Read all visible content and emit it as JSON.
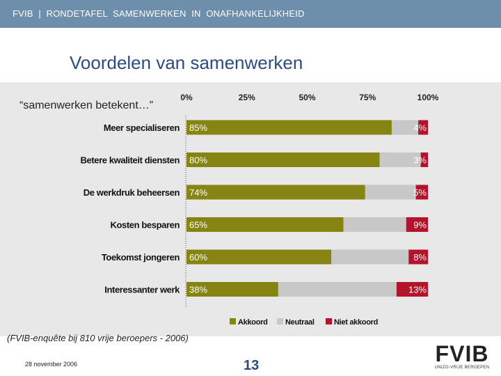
{
  "header": {
    "text": "FVIB  |  RONDETAFEL  SAMENWERKEN  IN  ONAFHANKELIJKHEID"
  },
  "title": "Voordelen van samenwerken",
  "colors": {
    "header": "#6d8fac",
    "title": "#2c4a86",
    "akkoord": "#868513",
    "neutraal": "#c8c8c8",
    "niet_akkoord": "#b3132b",
    "logo_accent": "#c8102e"
  },
  "chart_data": {
    "type": "bar",
    "stacked": true,
    "orientation": "horizontal",
    "subtitle": "“samenwerken betekent…”",
    "xaxis_ticks": [
      "0%",
      "25%",
      "50%",
      "75%",
      "100%"
    ],
    "xlim": [
      0,
      100
    ],
    "categories": [
      "Meer specialiseren",
      "Betere kwaliteit  diensten",
      "De werkdruk  beheersen",
      "Kosten besparen",
      "Toekomst jongeren",
      "Interessanter werk"
    ],
    "series": [
      {
        "name": "Akkoord",
        "values": [
          85,
          80,
          74,
          65,
          60,
          38
        ],
        "labels": [
          "85%",
          "80%",
          "74%",
          "65%",
          "60%",
          "38%"
        ]
      },
      {
        "name": "Neutraal",
        "values": [
          11,
          17,
          21,
          26,
          32,
          49
        ]
      },
      {
        "name": "Niet akkoord",
        "values": [
          4,
          3,
          5,
          9,
          8,
          13
        ],
        "labels": [
          "4%",
          "3%",
          "5%",
          "9%",
          "8%",
          "13%"
        ]
      }
    ],
    "legend": [
      "Akkoord",
      "Neutraal",
      "Niet akkoord"
    ],
    "legend_position": "bottom-right"
  },
  "source_note": "(FVIB-enquête bij 810 vrije beroepers - 2006)",
  "footer": {
    "date": "28 november 2006",
    "page": "13"
  },
  "logo": {
    "word": "FVIB",
    "tagline": "UNIZO-VRIJE BEROEPEN"
  }
}
